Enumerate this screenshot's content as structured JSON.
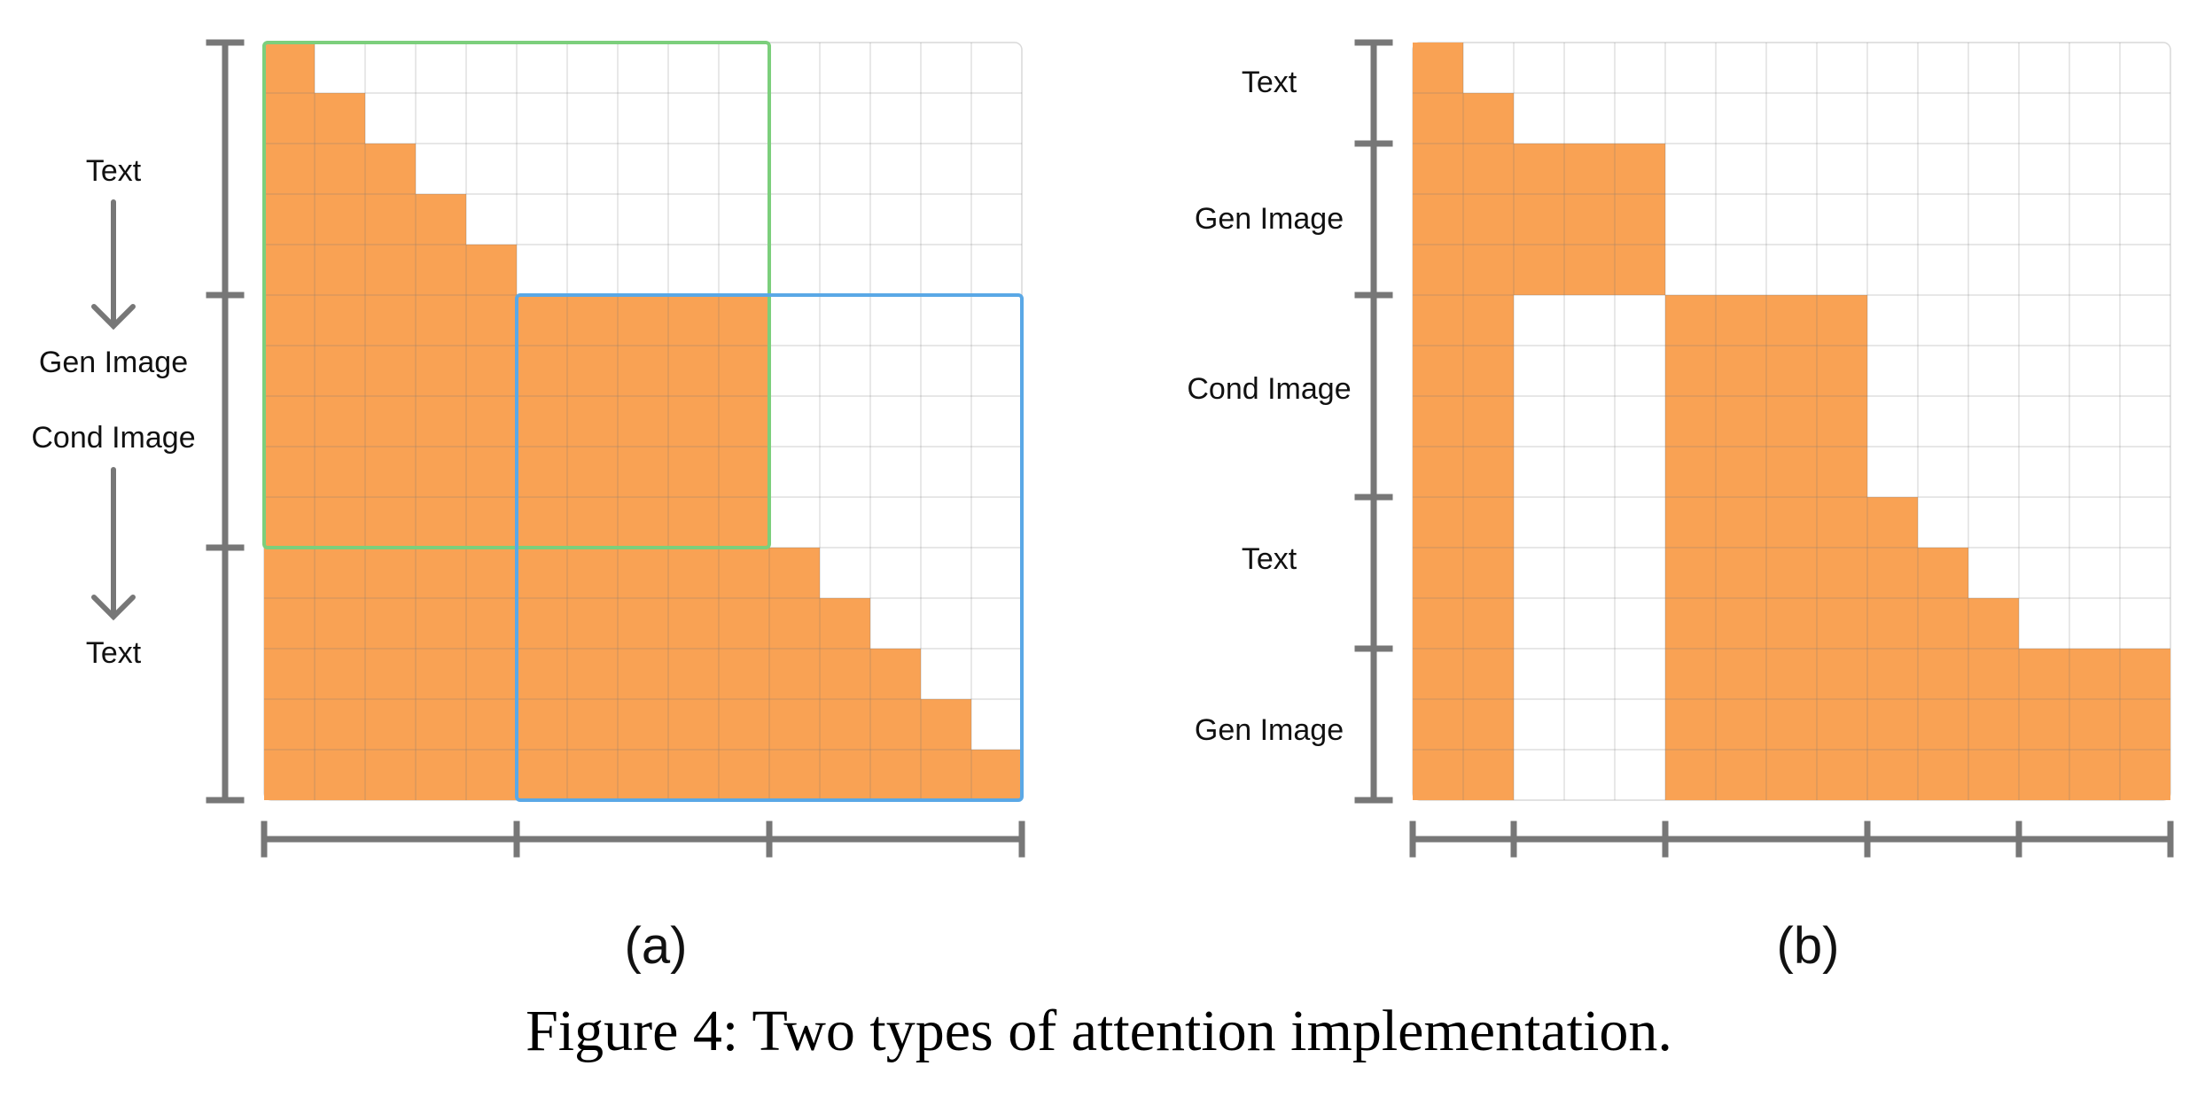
{
  "colors": {
    "cell_fill": "#f9a254",
    "grid_line": "#d9d9d9",
    "axis": "#777777",
    "green_box": "#7ccf7c",
    "blue_box": "#5aa8e6"
  },
  "panel_a": {
    "row_labels": [
      "Text",
      "Gen Image",
      "Cond Image",
      "Text"
    ],
    "sublabel": "(a)",
    "grid_size": 15,
    "row_ticks": [
      0,
      5,
      10,
      15
    ],
    "col_ticks": [
      0,
      5,
      10,
      15
    ],
    "row_fill": [
      1,
      2,
      3,
      4,
      5,
      10,
      10,
      10,
      10,
      10,
      11,
      12,
      13,
      14,
      15
    ],
    "boxes": [
      {
        "name": "green-box",
        "row0": 0,
        "row1": 10,
        "col0": 0,
        "col1": 10,
        "color": "#7ccf7c"
      },
      {
        "name": "blue-box",
        "row0": 5,
        "row1": 15,
        "col0": 5,
        "col1": 15,
        "color": "#5aa8e6"
      }
    ]
  },
  "panel_b": {
    "row_labels": [
      "Text",
      "Gen Image",
      "Cond Image",
      "Text",
      "Gen Image"
    ],
    "sublabel": "(b)",
    "grid_size": 15,
    "row_ticks": [
      0,
      2,
      5,
      9,
      12,
      15
    ],
    "col_ticks": [
      0,
      2,
      5,
      9,
      12,
      15
    ],
    "row_spans": [
      [
        [
          0,
          1
        ]
      ],
      [
        [
          0,
          2
        ]
      ],
      [
        [
          0,
          5
        ]
      ],
      [
        [
          0,
          5
        ]
      ],
      [
        [
          0,
          5
        ]
      ],
      [
        [
          0,
          2
        ],
        [
          5,
          9
        ]
      ],
      [
        [
          0,
          2
        ],
        [
          5,
          9
        ]
      ],
      [
        [
          0,
          2
        ],
        [
          5,
          9
        ]
      ],
      [
        [
          0,
          2
        ],
        [
          5,
          9
        ]
      ],
      [
        [
          0,
          2
        ],
        [
          5,
          10
        ]
      ],
      [
        [
          0,
          2
        ],
        [
          5,
          11
        ]
      ],
      [
        [
          0,
          2
        ],
        [
          5,
          12
        ]
      ],
      [
        [
          0,
          2
        ],
        [
          5,
          15
        ]
      ],
      [
        [
          0,
          2
        ],
        [
          5,
          15
        ]
      ],
      [
        [
          0,
          2
        ],
        [
          5,
          15
        ]
      ]
    ]
  },
  "caption": "Figure 4: Two types of attention implementation."
}
